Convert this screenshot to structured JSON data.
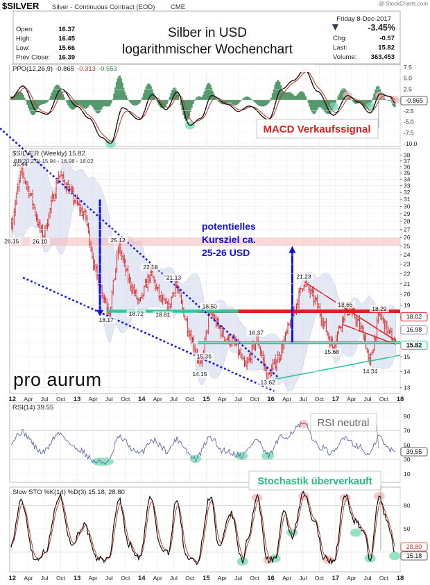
{
  "header": {
    "symbol": "$SILVER",
    "instrument": "Silver - Continuous Contract (EOD)",
    "exchange": "CME",
    "day_date": "Friday   8-Dec-2017",
    "watermark": "@ StockCharts.com",
    "quote_left": [
      {
        "label": "Open:",
        "value": "16.37"
      },
      {
        "label": "High:",
        "value": "16.45"
      },
      {
        "label": "Low:",
        "value": "15.66"
      },
      {
        "label": "Prev Close:",
        "value": "16.39"
      }
    ],
    "change_pct": "-3.45%",
    "quote_right": [
      {
        "label": "Chg:",
        "value": "-0.57"
      },
      {
        "label": "Last:",
        "value": "15.82"
      },
      {
        "label": "Volume:",
        "value": "363,453"
      }
    ],
    "title_line1": "Silber in USD",
    "title_line2": "logarithmischer Wochenchart"
  },
  "colors": {
    "price_bars": "#d82828",
    "support_line": "#2fc79a",
    "resistance_line": "#e02020",
    "trend_line": "#1a1adf",
    "arrow": "#1010e0",
    "macd_line": "#111111",
    "signal_line": "#c0392b",
    "histogram": "#3a8a55",
    "bollinger_band": "#cfd4ec",
    "green_highlight": "#6fd9b0",
    "red_highlight": "#f4b8b8"
  },
  "ppo_panel": {
    "legend_prefix": "PPO(12,26,9)",
    "legend_v1": "-0.865",
    "legend_v2": "-0.313",
    "legend_v3": "-0.553",
    "annotation": "MACD Verkaufssignal",
    "last_value": "-0.865",
    "ticks": [
      "7.5",
      "5.0",
      "2.5",
      "0.0",
      "-2.5",
      "-5.0",
      "-7.5",
      "-10.0"
    ]
  },
  "price_panel": {
    "legend_title": "$SILVER (Weekly) 15.82",
    "legend_bb": "BB(20,2.0) 15.94 - 16.98 - 18.02",
    "annotation_line1": "potentielles",
    "annotation_line2": "Kursziel ca.",
    "annotation_line3": "25-26 USD",
    "logo_text": "pro aurum",
    "ticks": [
      "38",
      "37",
      "36",
      "35",
      "34",
      "33",
      "32",
      "31",
      "30",
      "29",
      "28",
      "27",
      "26",
      "25",
      "24",
      "23",
      "22",
      "21",
      "20",
      "19",
      "18",
      "17",
      "16",
      "15",
      "14",
      "13"
    ],
    "right_badges": [
      "18.02",
      "16.98",
      "15.82"
    ],
    "price_labels": [
      "35.44",
      "26.15",
      "26.10",
      "25.12",
      "22.18",
      "21.13",
      "18.17",
      "18.72",
      "18.61",
      "18.50",
      "16.37",
      "15.36",
      "14.15",
      "13.62",
      "21.23",
      "18.66",
      "18.29",
      "15.68",
      "14.34"
    ]
  },
  "rsi_panel": {
    "legend": "RSI(14) 39.55",
    "annotation": "RSI neutral",
    "last_value": "39.55",
    "ticks": [
      "90",
      "70",
      "50",
      "30",
      "10"
    ]
  },
  "sto_panel": {
    "legend": "Slow STO %K(14) %D(3) 15.18, 28.80",
    "annotation": "Stochastik überverkauft",
    "last_k": "15.18",
    "last_d": "28.80",
    "ticks": [
      "80",
      "50",
      "20"
    ]
  },
  "x_axis_labels": [
    "12",
    "Apr",
    "Jul",
    "Oct",
    "13",
    "Apr",
    "Jul",
    "Oct",
    "14",
    "Apr",
    "Jul",
    "Oct",
    "15",
    "Apr",
    "Jul",
    "Oct",
    "16",
    "Apr",
    "Jul",
    "Oct",
    "17",
    "Apr",
    "Jul",
    "Oct",
    "18"
  ],
  "chart_data": {
    "type": "line",
    "title": "Silber in USD logarithmischer Wochenchart",
    "subtitle": "$SILVER (Weekly) 15.82",
    "x": [
      "12",
      "Apr",
      "Jul",
      "Oct",
      "13",
      "Apr",
      "Jul",
      "Oct",
      "14",
      "Apr",
      "Jul",
      "Oct",
      "15",
      "Apr",
      "Jul",
      "Oct",
      "16",
      "Apr",
      "Jul",
      "Oct",
      "17",
      "Apr",
      "Jul",
      "Oct",
      "18"
    ],
    "y_scale": "log",
    "ylim": [
      13,
      38
    ],
    "series": [
      {
        "name": "$SILVER",
        "points": [
          [
            "2011-12-30",
            27.8
          ],
          [
            "2012-02-20",
            35.44
          ],
          [
            "2012-04-15",
            31.5
          ],
          [
            "2012-06-01",
            27.2
          ],
          [
            "2012-06-25",
            26.15
          ],
          [
            "2012-09-20",
            34.8
          ],
          [
            "2012-11-15",
            32.5
          ],
          [
            "2013-01-01",
            30.2
          ],
          [
            "2013-02-20",
            28.5
          ],
          [
            "2013-04-10",
            22.5
          ],
          [
            "2013-06-25",
            18.72
          ],
          [
            "2013-07-01",
            18.17
          ],
          [
            "2013-08-25",
            25.12
          ],
          [
            "2013-10-10",
            21.8
          ],
          [
            "2013-12-20",
            19.1
          ],
          [
            "2014-02-20",
            22.18
          ],
          [
            "2014-04-15",
            19.6
          ],
          [
            "2014-06-01",
            18.61
          ],
          [
            "2014-07-10",
            21.13
          ],
          [
            "2014-09-20",
            17.1
          ],
          [
            "2014-11-05",
            15.36
          ],
          [
            "2014-12-01",
            14.15
          ],
          [
            "2015-01-20",
            18.5
          ],
          [
            "2015-04-15",
            16.4
          ],
          [
            "2015-06-10",
            16.0
          ],
          [
            "2015-08-10",
            14.2
          ],
          [
            "2015-10-15",
            16.37
          ],
          [
            "2015-12-14",
            13.62
          ],
          [
            "2016-02-20",
            15.2
          ],
          [
            "2016-04-25",
            17.8
          ],
          [
            "2016-07-05",
            21.23
          ],
          [
            "2016-09-15",
            19.2
          ],
          [
            "2016-12-15",
            15.68
          ],
          [
            "2017-02-25",
            18.66
          ],
          [
            "2017-04-15",
            18.2
          ],
          [
            "2017-06-15",
            16.4
          ],
          [
            "2017-07-10",
            14.34
          ],
          [
            "2017-09-05",
            18.29
          ],
          [
            "2017-10-20",
            17.0
          ],
          [
            "2017-12-08",
            15.82
          ]
        ]
      }
    ],
    "reference_lines": {
      "resistance": 18.5,
      "support": 16.0,
      "target_zone": [
        25,
        26
      ]
    },
    "indicators": {
      "ppo": {
        "ppo": -0.865,
        "signal": -0.313,
        "histogram": -0.553
      },
      "rsi": 39.55,
      "stochastic": {
        "k": 15.18,
        "d": 28.8
      }
    },
    "grid": true,
    "legend": "top-left"
  }
}
